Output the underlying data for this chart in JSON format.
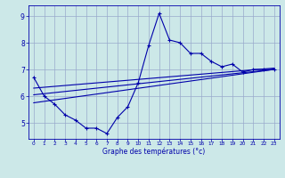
{
  "xlabel": "Graphe des températures (°c)",
  "bg_color": "#cce8e8",
  "grid_color": "#99aacc",
  "line_color": "#0000aa",
  "xlim": [
    -0.5,
    23.5
  ],
  "ylim": [
    4.4,
    9.4
  ],
  "yticks": [
    5,
    6,
    7,
    8,
    9
  ],
  "xticks": [
    0,
    1,
    2,
    3,
    4,
    5,
    6,
    7,
    8,
    9,
    10,
    11,
    12,
    13,
    14,
    15,
    16,
    17,
    18,
    19,
    20,
    21,
    22,
    23
  ],
  "main_x": [
    0,
    1,
    2,
    3,
    4,
    5,
    6,
    7,
    8,
    9,
    10,
    11,
    12,
    13,
    14,
    15,
    16,
    17,
    18,
    19,
    20,
    21,
    22,
    23
  ],
  "main_y": [
    6.7,
    6.0,
    5.7,
    5.3,
    5.1,
    4.8,
    4.8,
    4.6,
    5.2,
    5.6,
    6.5,
    7.9,
    9.1,
    8.1,
    8.0,
    7.6,
    7.6,
    7.3,
    7.1,
    7.2,
    6.9,
    7.0,
    7.0,
    7.0
  ],
  "line2_x": [
    0,
    23
  ],
  "line2_y": [
    6.05,
    7.0
  ],
  "line3_x": [
    0,
    23
  ],
  "line3_y": [
    5.75,
    7.0
  ],
  "line4_x": [
    0,
    23
  ],
  "line4_y": [
    6.3,
    7.05
  ]
}
